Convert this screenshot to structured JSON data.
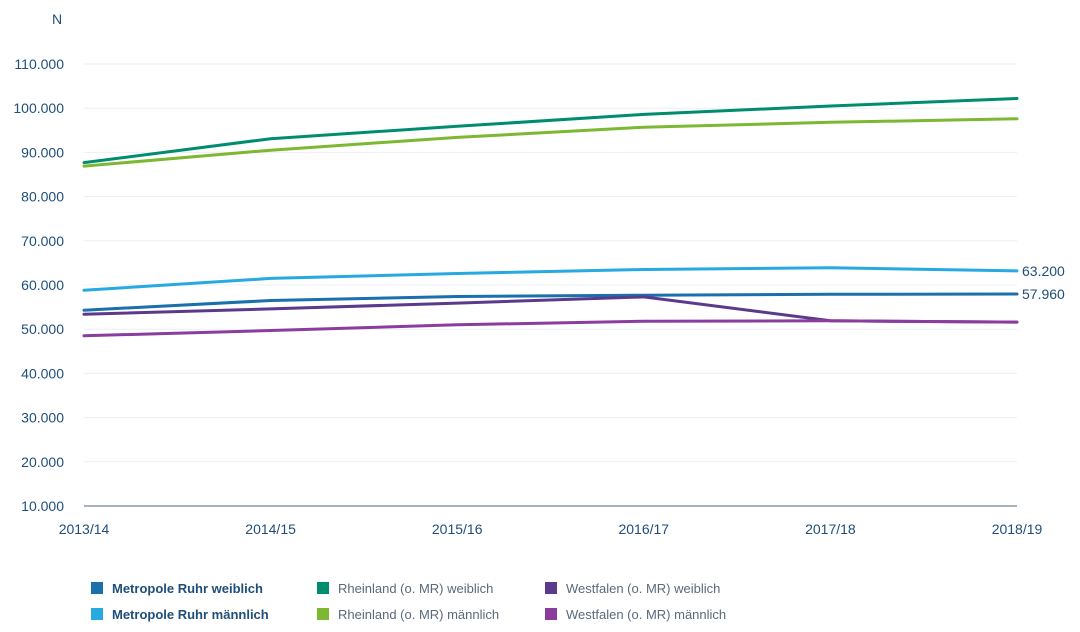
{
  "chart_data": {
    "type": "line",
    "title": "",
    "xlabel": "",
    "ylabel": "N",
    "ylim": [
      10000,
      110000
    ],
    "yticks": [
      10000,
      20000,
      30000,
      40000,
      50000,
      60000,
      70000,
      80000,
      90000,
      100000,
      110000
    ],
    "ytick_labels": [
      "10.000",
      "20.000",
      "30.000",
      "40.000",
      "50.000",
      "60.000",
      "70.000",
      "80.000",
      "90.000",
      "100.000",
      "110.000"
    ],
    "categories": [
      "2013/14",
      "2014/15",
      "2015/16",
      "2016/17",
      "2017/18",
      "2018/19"
    ],
    "grid": true,
    "legend_position": "bottom",
    "series": [
      {
        "name": "Metropole Ruhr weiblich",
        "color": "#1a6fad",
        "legend_bold": true,
        "values": [
          54300,
          56500,
          57400,
          57700,
          57900,
          57960
        ],
        "end_label": "57.960"
      },
      {
        "name": "Metropole Ruhr männlich",
        "color": "#27a9e1",
        "legend_bold": true,
        "values": [
          58800,
          61500,
          62600,
          63500,
          63900,
          63200
        ],
        "end_label": "63.200"
      },
      {
        "name": "Rheinland (o. MR) weiblich",
        "color": "#008c6e",
        "legend_bold": false,
        "values": [
          87700,
          93100,
          95900,
          98600,
          100500,
          102200
        ],
        "end_label": ""
      },
      {
        "name": "Rheinland (o. MR) männlich",
        "color": "#7cb832",
        "legend_bold": false,
        "values": [
          86900,
          90500,
          93400,
          95700,
          96800,
          97600
        ],
        "end_label": ""
      },
      {
        "name": "Westfalen (o. MR) weiblich",
        "color": "#5b3a8c",
        "legend_bold": false,
        "values": [
          53400,
          54600,
          55900,
          57300,
          51900,
          51600
        ],
        "end_label": ""
      },
      {
        "name": "Westfalen (o. MR) männlich",
        "color": "#8b3d9e",
        "legend_bold": false,
        "values": [
          48500,
          49700,
          51000,
          51800,
          51900,
          51600
        ],
        "end_label": ""
      }
    ]
  }
}
